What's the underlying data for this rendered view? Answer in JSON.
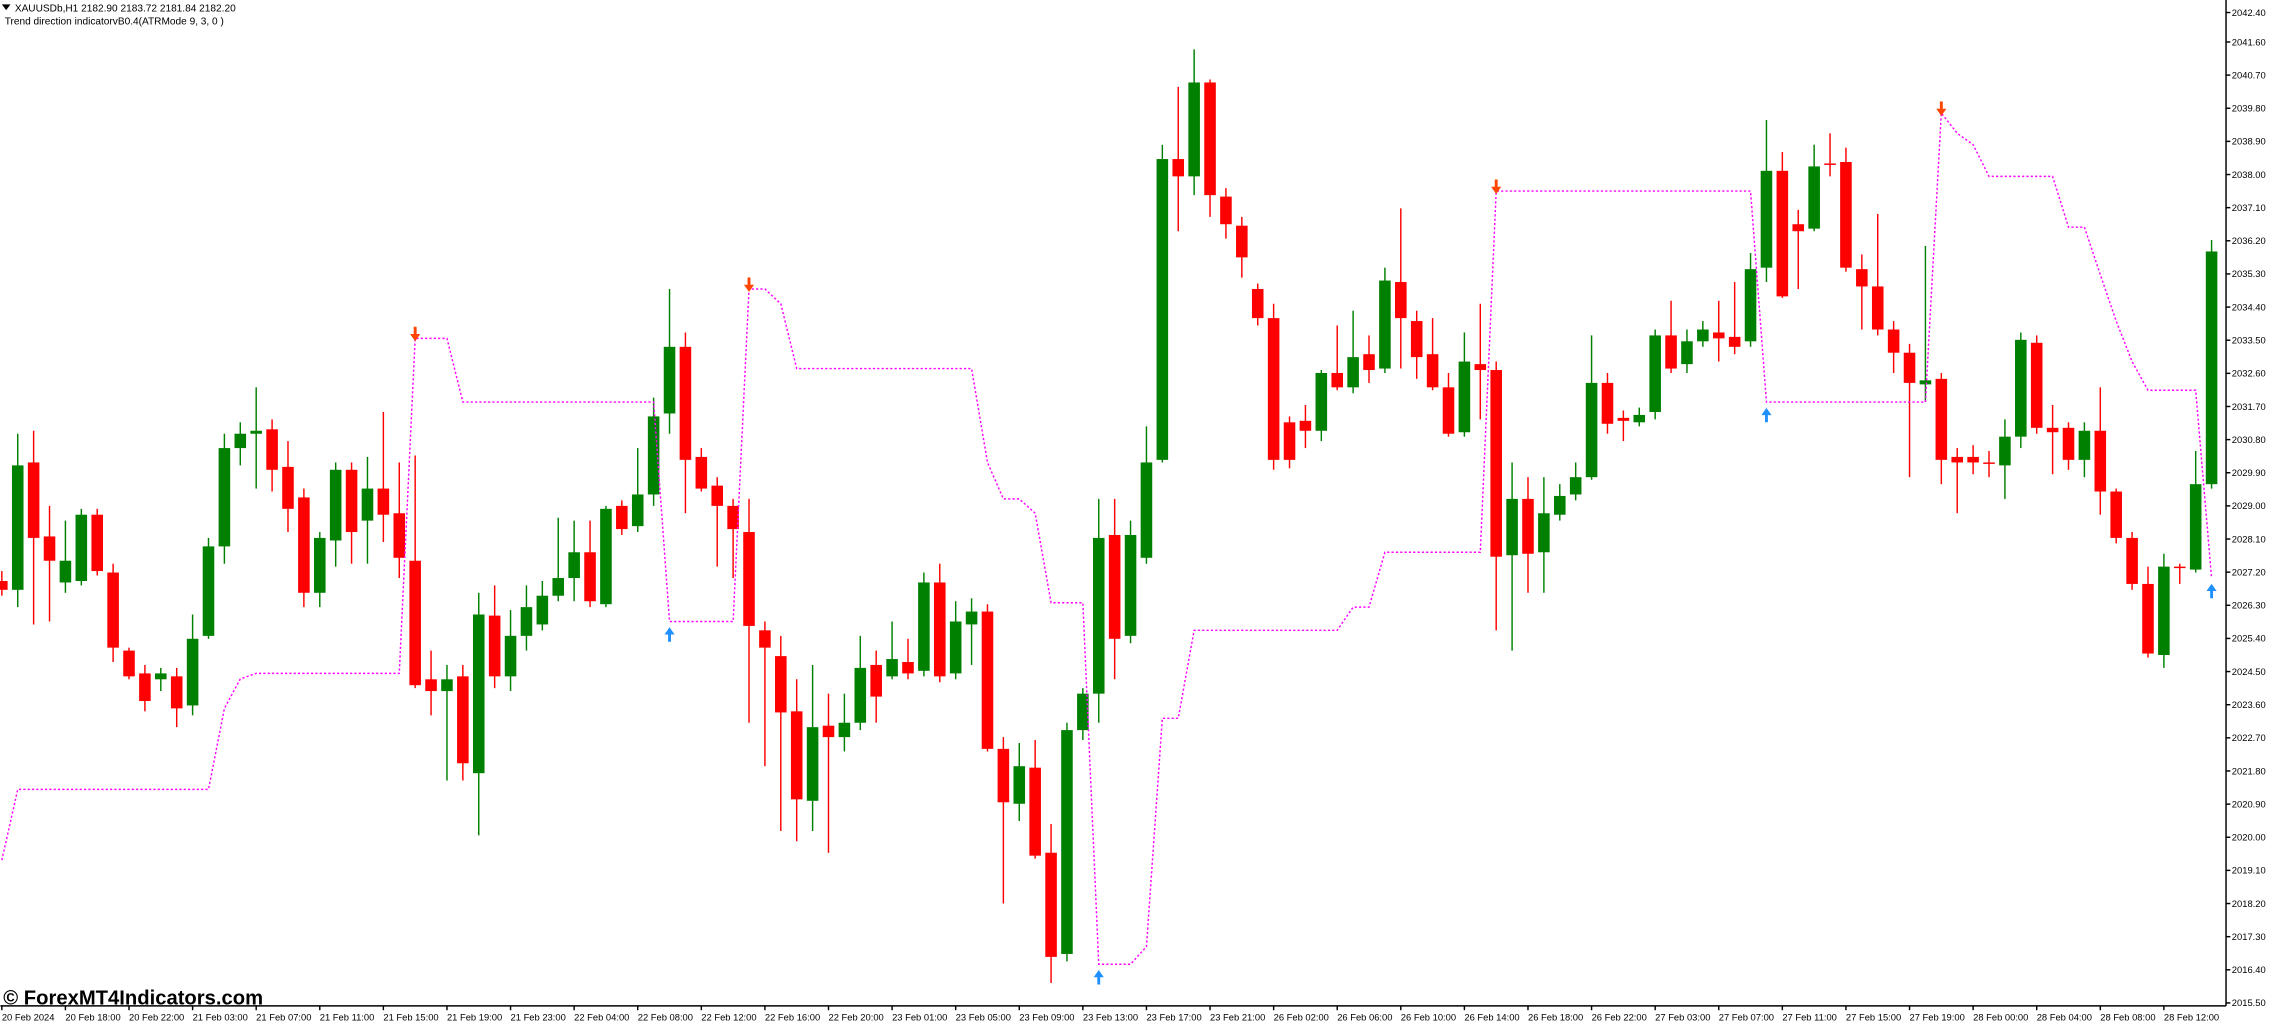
{
  "chart_data": {
    "type": "candlestick",
    "title": "XAUUSDb,H1  2182.90 2183.72 2181.84 2182.20",
    "subtitle": "Trend direction indicatorvB0.4(ATRMode 9, 3, 0 )",
    "annotation": "© ForexMT4Indicators.com",
    "up_color": "#008000",
    "down_color": "#ff0000",
    "categories": [
      "20 Feb 2024",
      null,
      null,
      null,
      "20 Feb 18:00",
      null,
      null,
      null,
      "20 Feb 22:00",
      null,
      null,
      null,
      "21 Feb 03:00",
      null,
      null,
      null,
      "21 Feb 07:00",
      null,
      null,
      null,
      "21 Feb 11:00",
      null,
      null,
      null,
      "21 Feb 15:00",
      null,
      null,
      null,
      "21 Feb 19:00",
      null,
      null,
      null,
      "21 Feb 23:00",
      null,
      null,
      null,
      "22 Feb 04:00",
      null,
      null,
      null,
      "22 Feb 08:00",
      null,
      null,
      null,
      "22 Feb 12:00",
      null,
      null,
      null,
      "22 Feb 16:00",
      null,
      null,
      null,
      "22 Feb 20:00",
      null,
      null,
      null,
      "23 Feb 01:00",
      null,
      null,
      null,
      "23 Feb 05:00",
      null,
      null,
      null,
      "23 Feb 09:00",
      null,
      null,
      null,
      "23 Feb 13:00",
      null,
      null,
      null,
      "23 Feb 17:00",
      null,
      null,
      null,
      "23 Feb 21:00",
      null,
      null,
      null,
      "26 Feb 02:00",
      null,
      null,
      null,
      "26 Feb 06:00",
      null,
      null,
      null,
      "26 Feb 10:00",
      null,
      null,
      null,
      "26 Feb 14:00",
      null,
      null,
      null,
      "26 Feb 18:00",
      null,
      null,
      null,
      "26 Feb 22:00",
      null,
      null,
      null,
      "27 Feb 03:00",
      null,
      null,
      null,
      "27 Feb 07:00",
      null,
      null,
      null,
      "27 Feb 11:00",
      null,
      null,
      null,
      "27 Feb 15:00",
      null,
      null,
      null,
      "27 Feb 19:00",
      null,
      null,
      null,
      "28 Feb 00:00",
      null,
      null,
      null,
      "28 Feb 04:00",
      null,
      null,
      null,
      "28 Feb 08:00",
      null,
      null,
      null,
      "28 Feb 12:00",
      null,
      null,
      null
    ],
    "open": [
      2026.96,
      2026.72,
      2030.18,
      2028.17,
      2026.92,
      2026.96,
      2028.76,
      2027.19,
      2025.07,
      2024.45,
      2024.29,
      2024.37,
      2023.58,
      2025.47,
      2027.9,
      2030.57,
      2030.96,
      2031.08,
      2030.06,
      2029.23,
      2026.64,
      2028.06,
      2029.98,
      2028.6,
      2029.47,
      2028.8,
      2027.51,
      2024.29,
      2023.97,
      2024.37,
      2021.74,
      2026.02,
      2024.37,
      2025.47,
      2025.78,
      2026.56,
      2027.04,
      2027.74,
      2026.33,
      2029.0,
      2028.45,
      2029.31,
      2031.51,
      2033.32,
      2030.33,
      2029.55,
      2029.0,
      2028.29,
      2025.62,
      2024.92,
      2023.42,
      2020.99,
      2023.03,
      2022.72,
      2023.11,
      2024.68,
      2024.37,
      2024.76,
      2024.52,
      2026.92,
      2024.45,
      2025.78,
      2026.13,
      2022.4,
      2020.91,
      2021.89,
      2019.58,
      2016.83,
      2022.91,
      2023.9,
      2028.21,
      2025.47,
      2027.59,
      2030.25,
      2038.42,
      2037.95,
      2040.5,
      2037.4,
      2036.61,
      2034.89,
      2034.1,
      2031.27,
      2031.31,
      2031.04,
      2032.61,
      2032.22,
      2033.12,
      2032.73,
      2035.08,
      2034.02,
      2033.12,
      2032.22,
      2031.0,
      2032.85,
      2032.69,
      2027.66,
      2029.19,
      2027.74,
      2028.76,
      2029.31,
      2029.78,
      2032.34,
      2031.39,
      2031.27,
      2031.55,
      2033.63,
      2032.85,
      2033.47,
      2033.71,
      2033.59,
      2033.47,
      2035.47,
      2038.1,
      2036.65,
      2036.53,
      2038.3,
      2038.34,
      2035.43,
      2034.96,
      2033.79,
      2033.16,
      2032.3,
      2032.45,
      2030.33,
      2030.33,
      2030.18,
      2030.1,
      2030.88,
      2033.43,
      2031.12,
      2031.12,
      2030.25,
      2031.04,
      2029.39,
      2028.13,
      2026.88,
      2024.95,
      2027.35,
      2027.27,
      2029.59
    ],
    "high": [
      2027.23,
      2030.96,
      2031.04,
      2029.0,
      2028.6,
      2028.92,
      2028.92,
      2027.43,
      2025.15,
      2024.68,
      2024.6,
      2024.6,
      2026.05,
      2028.13,
      2030.96,
      2031.27,
      2032.22,
      2031.35,
      2030.76,
      2029.47,
      2028.29,
      2030.18,
      2030.18,
      2030.33,
      2031.55,
      2030.18,
      2030.37,
      2025.07,
      2024.68,
      2024.68,
      2026.64,
      2026.84,
      2026.17,
      2026.84,
      2026.96,
      2028.68,
      2028.6,
      2028.6,
      2029.0,
      2029.15,
      2030.57,
      2031.94,
      2034.89,
      2033.71,
      2030.57,
      2029.78,
      2029.19,
      2029.19,
      2025.86,
      2025.47,
      2024.29,
      2024.68,
      2023.9,
      2023.9,
      2025.47,
      2025.07,
      2025.86,
      2025.39,
      2027.19,
      2027.43,
      2026.41,
      2026.49,
      2026.33,
      2022.72,
      2022.56,
      2022.64,
      2020.36,
      2023.11,
      2024.05,
      2029.19,
      2029.19,
      2028.6,
      2031.16,
      2038.81,
      2040.38,
      2041.4,
      2040.58,
      2037.63,
      2036.85,
      2035.04,
      2034.49,
      2031.43,
      2031.74,
      2032.69,
      2033.9,
      2034.3,
      2033.63,
      2035.47,
      2037.08,
      2034.3,
      2034.1,
      2032.61,
      2033.71,
      2034.49,
      2032.92,
      2030.18,
      2029.78,
      2029.78,
      2029.59,
      2030.18,
      2033.63,
      2032.61,
      2031.59,
      2031.67,
      2033.79,
      2034.57,
      2033.79,
      2034.02,
      2034.57,
      2035.08,
      2035.87,
      2039.48,
      2038.61,
      2037.04,
      2038.81,
      2039.12,
      2038.73,
      2035.83,
      2036.93,
      2034.02,
      2033.4,
      2036.06,
      2032.61,
      2030.57,
      2030.65,
      2030.49,
      2031.35,
      2033.71,
      2033.63,
      2031.74,
      2031.27,
      2031.27,
      2032.22,
      2029.47,
      2028.29,
      2027.35,
      2027.7,
      2027.43,
      2030.49,
      2036.22
    ],
    "low": [
      2026.56,
      2026.25,
      2025.78,
      2025.86,
      2026.64,
      2026.84,
      2027.11,
      2024.76,
      2024.29,
      2023.42,
      2023.97,
      2022.99,
      2023.31,
      2025.39,
      2027.43,
      2030.1,
      2029.47,
      2029.39,
      2028.29,
      2026.25,
      2026.25,
      2027.35,
      2027.43,
      2027.43,
      2028.02,
      2027.04,
      2024.05,
      2023.31,
      2021.54,
      2021.54,
      2020.05,
      2024.05,
      2023.97,
      2025.07,
      2025.62,
      2026.41,
      2026.41,
      2026.25,
      2026.25,
      2028.21,
      2028.29,
      2029.0,
      2030.96,
      2028.8,
      2029.39,
      2027.35,
      2027.04,
      2023.11,
      2021.93,
      2020.17,
      2019.89,
      2020.17,
      2019.58,
      2022.33,
      2022.91,
      2023.11,
      2024.29,
      2024.29,
      2024.37,
      2024.21,
      2024.29,
      2024.68,
      2022.33,
      2018.2,
      2020.44,
      2019.42,
      2016.04,
      2016.63,
      2022.64,
      2023.11,
      2024.29,
      2025.27,
      2027.43,
      2030.18,
      2036.46,
      2037.44,
      2036.85,
      2036.26,
      2035.2,
      2033.9,
      2029.98,
      2030.02,
      2030.57,
      2030.76,
      2032.14,
      2032.06,
      2032.34,
      2032.61,
      2032.73,
      2032.45,
      2032.14,
      2030.88,
      2030.88,
      2031.35,
      2025.62,
      2025.07,
      2026.64,
      2026.64,
      2028.6,
      2029.15,
      2029.71,
      2030.96,
      2030.76,
      2031.16,
      2031.35,
      2032.61,
      2032.61,
      2033.32,
      2032.92,
      2033.12,
      2033.32,
      2035.08,
      2034.65,
      2034.89,
      2036.46,
      2037.95,
      2035.36,
      2033.79,
      2033.63,
      2032.61,
      2029.78,
      2031.82,
      2029.59,
      2028.8,
      2029.86,
      2029.78,
      2029.19,
      2030.57,
      2030.96,
      2029.86,
      2029.98,
      2029.78,
      2028.76,
      2027.98,
      2026.72,
      2024.88,
      2024.6,
      2026.88,
      2027.19,
      2029.47
    ],
    "close": [
      2026.72,
      2030.1,
      2028.13,
      2027.51,
      2027.51,
      2028.76,
      2027.23,
      2025.15,
      2024.37,
      2023.7,
      2024.45,
      2023.5,
      2025.39,
      2027.9,
      2030.57,
      2030.96,
      2031.04,
      2029.98,
      2028.92,
      2026.64,
      2028.13,
      2029.98,
      2028.29,
      2029.47,
      2028.76,
      2027.59,
      2024.13,
      2023.97,
      2024.29,
      2022.01,
      2026.05,
      2024.37,
      2025.47,
      2026.25,
      2026.56,
      2027.04,
      2027.74,
      2026.41,
      2028.92,
      2028.37,
      2029.31,
      2031.43,
      2033.32,
      2030.25,
      2029.47,
      2029.0,
      2028.37,
      2025.74,
      2025.15,
      2023.39,
      2021.03,
      2022.99,
      2022.72,
      2023.11,
      2024.6,
      2023.82,
      2024.84,
      2024.45,
      2026.92,
      2024.37,
      2025.86,
      2026.13,
      2022.4,
      2020.95,
      2021.93,
      2019.5,
      2016.75,
      2022.91,
      2023.9,
      2028.13,
      2025.39,
      2028.21,
      2030.18,
      2038.42,
      2037.95,
      2040.5,
      2037.44,
      2036.65,
      2035.75,
      2034.1,
      2030.25,
      2030.25,
      2031.04,
      2032.61,
      2032.22,
      2033.04,
      2032.69,
      2035.12,
      2034.1,
      2033.04,
      2032.22,
      2030.96,
      2032.92,
      2032.69,
      2027.62,
      2029.19,
      2027.7,
      2028.8,
      2029.27,
      2029.78,
      2032.34,
      2031.23,
      2031.31,
      2031.47,
      2033.63,
      2032.73,
      2033.47,
      2033.79,
      2033.55,
      2033.32,
      2035.43,
      2038.1,
      2034.69,
      2036.46,
      2038.22,
      2038.26,
      2035.47,
      2034.96,
      2033.79,
      2033.16,
      2032.34,
      2032.41,
      2030.25,
      2030.18,
      2030.18,
      2030.14,
      2030.88,
      2033.51,
      2031.12,
      2031.0,
      2030.25,
      2031.04,
      2029.39,
      2028.13,
      2026.88,
      2024.99,
      2027.35,
      2027.31,
      2029.59,
      2035.91
    ],
    "trend": {
      "color": "#ff00ff",
      "values": [
        2019.38,
        2021.3,
        2021.3,
        2021.3,
        2021.3,
        2021.3,
        2021.3,
        2021.3,
        2021.3,
        2021.3,
        2021.3,
        2021.3,
        2021.3,
        2021.3,
        2023.5,
        2024.3,
        2024.45,
        2024.45,
        2024.45,
        2024.45,
        2024.45,
        2024.45,
        2024.45,
        2024.45,
        2024.45,
        2024.45,
        2033.55,
        2033.55,
        2033.55,
        2031.82,
        2031.82,
        2031.82,
        2031.82,
        2031.82,
        2031.82,
        2031.82,
        2031.82,
        2031.82,
        2031.82,
        2031.82,
        2031.82,
        2031.82,
        2025.86,
        2025.86,
        2025.86,
        2025.86,
        2025.86,
        2034.89,
        2034.89,
        2034.49,
        2032.73,
        2032.73,
        2032.73,
        2032.73,
        2032.73,
        2032.73,
        2032.73,
        2032.73,
        2032.73,
        2032.73,
        2032.73,
        2032.73,
        2030.18,
        2029.19,
        2029.19,
        2028.8,
        2026.37,
        2026.37,
        2026.37,
        2016.55,
        2016.55,
        2016.55,
        2017.03,
        2023.23,
        2023.23,
        2025.62,
        2025.62,
        2025.62,
        2025.62,
        2025.62,
        2025.62,
        2025.62,
        2025.62,
        2025.62,
        2025.62,
        2026.25,
        2026.25,
        2027.74,
        2027.74,
        2027.74,
        2027.74,
        2027.74,
        2027.74,
        2027.74,
        2037.55,
        2037.55,
        2037.55,
        2037.55,
        2037.55,
        2037.55,
        2037.55,
        2037.55,
        2037.55,
        2037.55,
        2037.55,
        2037.55,
        2037.55,
        2037.55,
        2037.55,
        2037.55,
        2037.55,
        2031.82,
        2031.82,
        2031.82,
        2031.82,
        2031.82,
        2031.82,
        2031.82,
        2031.82,
        2031.82,
        2031.82,
        2031.82,
        2039.67,
        2039.12,
        2038.81,
        2037.95,
        2037.95,
        2037.95,
        2037.95,
        2037.95,
        2036.57,
        2036.57,
        2035.28,
        2034.02,
        2032.92,
        2032.14,
        2032.14,
        2032.14,
        2032.14,
        2027.04
      ]
    },
    "buy_arrows": {
      "color": "#1e90ff",
      "values": [
        null,
        null,
        null,
        null,
        null,
        null,
        null,
        null,
        null,
        null,
        null,
        null,
        null,
        null,
        null,
        null,
        null,
        null,
        null,
        null,
        null,
        null,
        null,
        null,
        null,
        null,
        null,
        null,
        null,
        null,
        null,
        null,
        null,
        null,
        null,
        null,
        null,
        null,
        null,
        null,
        null,
        null,
        2025.86,
        null,
        null,
        null,
        null,
        null,
        null,
        null,
        null,
        null,
        null,
        null,
        null,
        null,
        null,
        null,
        null,
        null,
        null,
        null,
        null,
        null,
        null,
        null,
        null,
        null,
        null,
        2016.55,
        null,
        null,
        null,
        null,
        null,
        null,
        null,
        null,
        null,
        null,
        null,
        null,
        null,
        null,
        null,
        null,
        null,
        null,
        null,
        null,
        null,
        null,
        null,
        null,
        null,
        null,
        null,
        null,
        null,
        null,
        null,
        null,
        null,
        null,
        null,
        null,
        null,
        null,
        null,
        null,
        null,
        2031.82,
        null,
        null,
        null,
        null,
        null,
        null,
        null,
        null,
        null,
        null,
        null,
        null,
        null,
        null,
        null,
        null,
        null,
        null,
        null,
        null,
        null,
        null,
        null,
        null,
        null,
        null,
        null,
        2027.04
      ]
    },
    "sell_arrows": {
      "color": "#ff4500",
      "values": [
        null,
        null,
        null,
        null,
        null,
        null,
        null,
        null,
        null,
        null,
        null,
        null,
        null,
        null,
        null,
        null,
        null,
        null,
        null,
        null,
        null,
        null,
        null,
        null,
        null,
        null,
        2033.55,
        null,
        null,
        null,
        null,
        null,
        null,
        null,
        null,
        null,
        null,
        null,
        null,
        null,
        null,
        null,
        null,
        null,
        null,
        null,
        null,
        2034.89,
        null,
        null,
        null,
        null,
        null,
        null,
        null,
        null,
        null,
        null,
        null,
        null,
        null,
        null,
        null,
        null,
        null,
        null,
        null,
        null,
        null,
        null,
        null,
        null,
        null,
        null,
        null,
        null,
        null,
        null,
        null,
        null,
        null,
        null,
        null,
        null,
        null,
        null,
        null,
        null,
        null,
        null,
        null,
        null,
        null,
        null,
        2037.55,
        null,
        null,
        null,
        null,
        null,
        null,
        null,
        null,
        null,
        null,
        null,
        null,
        null,
        null,
        null,
        null,
        null,
        null,
        null,
        null,
        null,
        null,
        null,
        null,
        null,
        null,
        null,
        2039.67,
        null,
        null,
        null,
        null,
        null,
        null,
        null,
        null,
        null,
        null,
        null,
        null,
        null,
        null,
        null,
        null,
        null
      ]
    },
    "ylim": [
      2015.42,
      2042.74
    ],
    "yticks": [
      {
        "value": 2042.4,
        "label": "2042.40"
      },
      {
        "value": 2041.6,
        "label": "2041.60"
      },
      {
        "value": 2040.7,
        "label": "2040.70"
      },
      {
        "value": 2039.8,
        "label": "2039.80"
      },
      {
        "value": 2038.9,
        "label": "2038.90"
      },
      {
        "value": 2038.0,
        "label": "2038.00"
      },
      {
        "value": 2037.1,
        "label": "2037.10"
      },
      {
        "value": 2036.2,
        "label": "2036.20"
      },
      {
        "value": 2035.3,
        "label": "2035.30"
      },
      {
        "value": 2034.4,
        "label": "2034.40"
      },
      {
        "value": 2033.5,
        "label": "2033.50"
      },
      {
        "value": 2032.6,
        "label": "2032.60"
      },
      {
        "value": 2031.7,
        "label": "2031.70"
      },
      {
        "value": 2030.8,
        "label": "2030.80"
      },
      {
        "value": 2029.9,
        "label": "2029.90"
      },
      {
        "value": 2029.0,
        "label": "2029.00"
      },
      {
        "value": 2028.1,
        "label": "2028.10"
      },
      {
        "value": 2027.2,
        "label": "2027.20"
      },
      {
        "value": 2026.3,
        "label": "2026.30"
      },
      {
        "value": 2025.4,
        "label": "2025.40"
      },
      {
        "value": 2024.5,
        "label": "2024.50"
      },
      {
        "value": 2023.6,
        "label": "2023.60"
      },
      {
        "value": 2022.7,
        "label": "2022.70"
      },
      {
        "value": 2021.8,
        "label": "2021.80"
      },
      {
        "value": 2020.9,
        "label": "2020.90"
      },
      {
        "value": 2020.0,
        "label": "2020.00"
      },
      {
        "value": 2019.1,
        "label": "2019.10"
      },
      {
        "value": 2018.2,
        "label": "2018.20"
      },
      {
        "value": 2017.3,
        "label": "2017.30"
      },
      {
        "value": 2016.4,
        "label": "2016.40"
      },
      {
        "value": 2015.5,
        "label": "2015.50"
      }
    ]
  }
}
